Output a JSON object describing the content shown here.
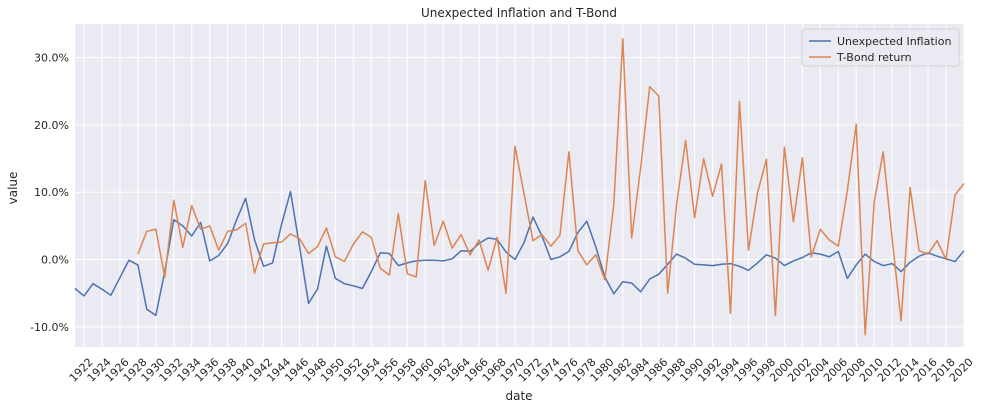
{
  "chart_data": {
    "type": "line",
    "title": "Unexpected Inflation and T-Bond",
    "xlabel": "date",
    "ylabel": "value",
    "x_start": 1921,
    "x_end": 2020,
    "xlim": [
      1921,
      2020
    ],
    "ylim": [
      -0.13,
      0.35
    ],
    "y_format": "percent_1dp",
    "y_ticks": [
      -0.1,
      0.0,
      0.1,
      0.2,
      0.3
    ],
    "x_ticks": [
      1922,
      1924,
      1926,
      1928,
      1930,
      1932,
      1934,
      1936,
      1938,
      1940,
      1942,
      1944,
      1946,
      1948,
      1950,
      1952,
      1954,
      1956,
      1958,
      1960,
      1962,
      1964,
      1966,
      1968,
      1970,
      1972,
      1974,
      1976,
      1978,
      1980,
      1982,
      1984,
      1986,
      1988,
      1990,
      1992,
      1994,
      1996,
      1998,
      2000,
      2002,
      2004,
      2006,
      2008,
      2010,
      2012,
      2014,
      2016,
      2018,
      2020
    ],
    "grid": true,
    "legend_position": "top-right",
    "series": [
      {
        "name": "Unexpected Inflation",
        "color": "#4c72b0",
        "x": [
          1921,
          1922,
          1923,
          1924,
          1925,
          1926,
          1927,
          1928,
          1929,
          1930,
          1931,
          1932,
          1933,
          1934,
          1935,
          1936,
          1937,
          1938,
          1939,
          1940,
          1941,
          1942,
          1943,
          1944,
          1945,
          1946,
          1947,
          1948,
          1949,
          1950,
          1951,
          1952,
          1953,
          1954,
          1955,
          1956,
          1957,
          1958,
          1959,
          1960,
          1961,
          1962,
          1963,
          1964,
          1965,
          1966,
          1967,
          1968,
          1969,
          1970,
          1971,
          1972,
          1973,
          1974,
          1975,
          1976,
          1977,
          1978,
          1979,
          1980,
          1981,
          1982,
          1983,
          1984,
          1985,
          1986,
          1987,
          1988,
          1989,
          1990,
          1991,
          1992,
          1993,
          1994,
          1995,
          1996,
          1997,
          1998,
          1999,
          2000,
          2001,
          2002,
          2003,
          2004,
          2005,
          2006,
          2007,
          2008,
          2009,
          2010,
          2011,
          2012,
          2013,
          2014,
          2015,
          2016,
          2017,
          2018,
          2019,
          2020
        ],
        "values": [
          -0.043,
          -0.054,
          -0.036,
          -0.044,
          -0.053,
          -0.027,
          -0.001,
          -0.008,
          -0.074,
          -0.083,
          -0.018,
          0.059,
          0.05,
          0.035,
          0.055,
          -0.002,
          0.006,
          0.024,
          0.059,
          0.091,
          0.029,
          -0.01,
          -0.005,
          0.052,
          0.101,
          0.02,
          -0.065,
          -0.044,
          0.02,
          -0.028,
          -0.036,
          -0.039,
          -0.043,
          -0.018,
          0.01,
          0.009,
          -0.009,
          -0.005,
          -0.002,
          -0.001,
          -0.001,
          -0.002,
          0.001,
          0.013,
          0.012,
          0.024,
          0.032,
          0.03,
          0.011,
          0.0,
          0.025,
          0.063,
          0.035,
          0.0,
          0.004,
          0.012,
          0.04,
          0.057,
          0.019,
          -0.026,
          -0.051,
          -0.033,
          -0.035,
          -0.048,
          -0.029,
          -0.022,
          -0.007,
          0.008,
          0.002,
          -0.007,
          -0.008,
          -0.009,
          -0.007,
          -0.006,
          -0.01,
          -0.016,
          -0.005,
          0.007,
          0.002,
          -0.009,
          -0.002,
          0.003,
          0.01,
          0.008,
          0.004,
          0.012,
          -0.028,
          -0.008,
          0.008,
          -0.003,
          -0.009,
          -0.006,
          -0.018,
          -0.004,
          0.005,
          0.01,
          0.005,
          0.001,
          -0.003,
          0.013
        ]
      },
      {
        "name": "T-Bond return",
        "color": "#dd8452",
        "x": [
          1928,
          1929,
          1930,
          1931,
          1932,
          1933,
          1934,
          1935,
          1936,
          1937,
          1938,
          1939,
          1940,
          1941,
          1942,
          1943,
          1944,
          1945,
          1946,
          1947,
          1948,
          1949,
          1950,
          1951,
          1952,
          1953,
          1954,
          1955,
          1956,
          1957,
          1958,
          1959,
          1960,
          1961,
          1962,
          1963,
          1964,
          1965,
          1966,
          1967,
          1968,
          1969,
          1970,
          1971,
          1972,
          1973,
          1974,
          1975,
          1976,
          1977,
          1978,
          1979,
          1980,
          1981,
          1982,
          1983,
          1984,
          1985,
          1986,
          1987,
          1988,
          1989,
          1990,
          1991,
          1992,
          1993,
          1994,
          1995,
          1996,
          1997,
          1998,
          1999,
          2000,
          2001,
          2002,
          2003,
          2004,
          2005,
          2006,
          2007,
          2008,
          2009,
          2010,
          2011,
          2012,
          2013,
          2014,
          2015,
          2016,
          2017,
          2018,
          2019,
          2020
        ],
        "values": [
          0.008,
          0.042,
          0.045,
          -0.026,
          0.088,
          0.018,
          0.08,
          0.045,
          0.05,
          0.014,
          0.042,
          0.044,
          0.054,
          -0.02,
          0.023,
          0.025,
          0.026,
          0.038,
          0.031,
          0.009,
          0.019,
          0.047,
          0.004,
          -0.003,
          0.023,
          0.041,
          0.033,
          -0.013,
          -0.023,
          0.068,
          -0.021,
          -0.026,
          0.117,
          0.021,
          0.057,
          0.017,
          0.037,
          0.007,
          0.029,
          -0.016,
          0.033,
          -0.05,
          0.168,
          0.098,
          0.028,
          0.037,
          0.02,
          0.036,
          0.16,
          0.013,
          -0.008,
          0.007,
          -0.03,
          0.082,
          0.328,
          0.032,
          0.137,
          0.257,
          0.243,
          -0.05,
          0.082,
          0.177,
          0.062,
          0.15,
          0.094,
          0.142,
          -0.08,
          0.235,
          0.014,
          0.099,
          0.149,
          -0.083,
          0.167,
          0.056,
          0.151,
          0.004,
          0.045,
          0.029,
          0.02,
          0.102,
          0.201,
          -0.112,
          0.085,
          0.16,
          0.03,
          -0.091,
          0.107,
          0.013,
          0.008,
          0.028,
          0.0,
          0.096,
          0.113
        ]
      }
    ]
  }
}
